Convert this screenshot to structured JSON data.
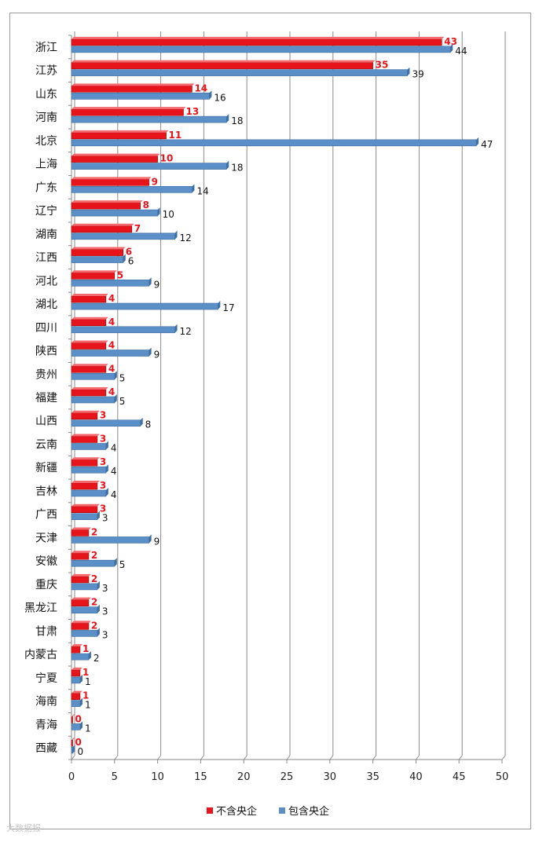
{
  "chart_data": {
    "type": "bar",
    "orientation": "horizontal",
    "categories": [
      "浙江",
      "江苏",
      "山东",
      "河南",
      "北京",
      "上海",
      "广东",
      "辽宁",
      "湖南",
      "江西",
      "河北",
      "湖北",
      "四川",
      "陕西",
      "贵州",
      "福建",
      "山西",
      "云南",
      "新疆",
      "吉林",
      "广西",
      "天津",
      "安徽",
      "重庆",
      "黑龙江",
      "甘肃",
      "内蒙古",
      "宁夏",
      "海南",
      "青海",
      "西藏"
    ],
    "series": [
      {
        "name": "不含央企",
        "color": "#e8141c",
        "values": [
          43,
          35,
          14,
          13,
          11,
          10,
          9,
          8,
          7,
          6,
          5,
          4,
          4,
          4,
          4,
          4,
          3,
          3,
          3,
          3,
          3,
          2,
          2,
          2,
          2,
          2,
          1,
          1,
          1,
          0,
          0
        ]
      },
      {
        "name": "包含央企",
        "color": "#5b8fc7",
        "values": [
          44,
          39,
          16,
          18,
          47,
          18,
          14,
          10,
          12,
          6,
          9,
          17,
          12,
          9,
          5,
          5,
          8,
          4,
          4,
          4,
          3,
          9,
          5,
          3,
          3,
          3,
          2,
          1,
          1,
          1,
          0
        ]
      }
    ],
    "xlim": [
      0,
      50
    ],
    "xticks": [
      "0",
      "5",
      "10",
      "15",
      "20",
      "25",
      "30",
      "35",
      "40",
      "45",
      "50"
    ],
    "grid": true,
    "legend_position": "bottom"
  },
  "watermark": "大数据报"
}
